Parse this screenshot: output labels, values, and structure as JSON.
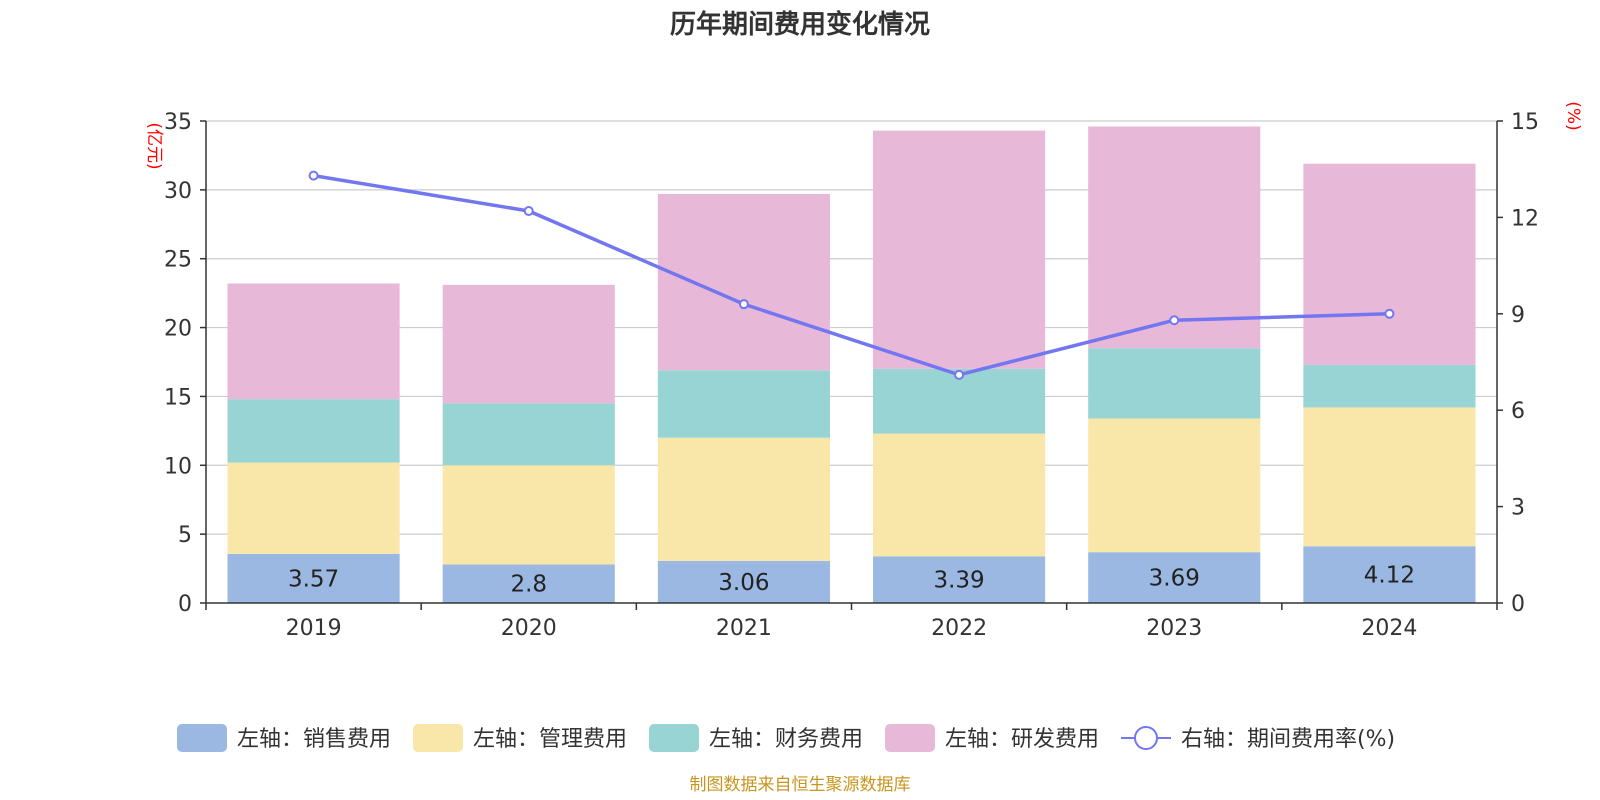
{
  "chart_data": {
    "type": "bar",
    "title": "历年期间费用变化情况",
    "categories": [
      "2019",
      "2020",
      "2021",
      "2022",
      "2023",
      "2024"
    ],
    "y_left": {
      "unit_label": "(亿元)",
      "range": [
        0,
        35
      ],
      "ticks": [
        0,
        5,
        10,
        15,
        20,
        25,
        30,
        35
      ]
    },
    "y_right": {
      "unit_label": "(%)",
      "range": [
        0,
        15
      ],
      "ticks": [
        0,
        3,
        6,
        9,
        12,
        15
      ]
    },
    "series": [
      {
        "name": "左轴：销售费用",
        "axis": "left",
        "color": "#9bb8e2",
        "values": [
          3.57,
          2.8,
          3.06,
          3.39,
          3.69,
          4.12
        ],
        "show_labels": true
      },
      {
        "name": "左轴：管理费用",
        "axis": "left",
        "color": "#f8e7a8",
        "values": [
          6.63,
          7.2,
          8.94,
          8.91,
          9.71,
          10.08
        ],
        "show_labels": false
      },
      {
        "name": "左轴：财务费用",
        "axis": "left",
        "color": "#98d4d4",
        "values": [
          4.6,
          4.5,
          4.9,
          4.7,
          5.1,
          3.1
        ],
        "show_labels": false
      },
      {
        "name": "左轴：研发费用",
        "axis": "left",
        "color": "#e8b8d8",
        "values": [
          8.4,
          8.6,
          12.8,
          17.3,
          16.1,
          14.6
        ],
        "show_labels": false
      }
    ],
    "line_series": {
      "name": "右轴：期间费用率(%)",
      "axis": "right",
      "color": "#7276f0",
      "values": [
        13.3,
        12.2,
        9.3,
        7.1,
        8.8,
        9.0
      ]
    },
    "grid": true,
    "legend_position": "bottom",
    "source_note": "制图数据来自恒生聚源数据库"
  }
}
